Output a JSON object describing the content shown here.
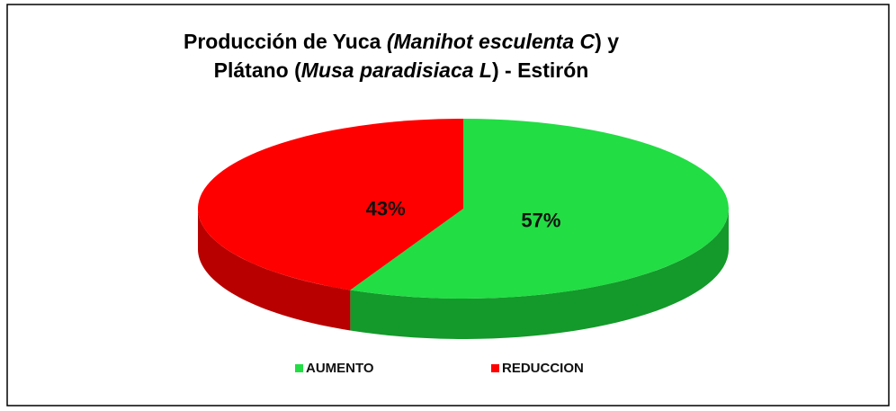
{
  "chart_data": {
    "type": "pie3d",
    "title": [
      [
        {
          "text": "Producción de Yuca ",
          "italic": false
        },
        {
          "text": "(Manihot  esculenta C",
          "italic": true
        },
        {
          "text": ") y",
          "italic": false
        }
      ],
      [
        {
          "text": "Plátano (",
          "italic": false
        },
        {
          "text": "Musa paradisiaca  L",
          "italic": true
        },
        {
          "text": ") - Estirón",
          "italic": false
        }
      ]
    ],
    "categories": [
      "AUMENTO",
      "REDUCCION"
    ],
    "values": [
      57,
      43
    ],
    "value_labels": [
      "57%",
      "43%"
    ],
    "colors": [
      "#22dd44",
      "#ff0000"
    ],
    "side_colors": [
      "#139a2a",
      "#b80000"
    ],
    "legend": "bottom"
  }
}
